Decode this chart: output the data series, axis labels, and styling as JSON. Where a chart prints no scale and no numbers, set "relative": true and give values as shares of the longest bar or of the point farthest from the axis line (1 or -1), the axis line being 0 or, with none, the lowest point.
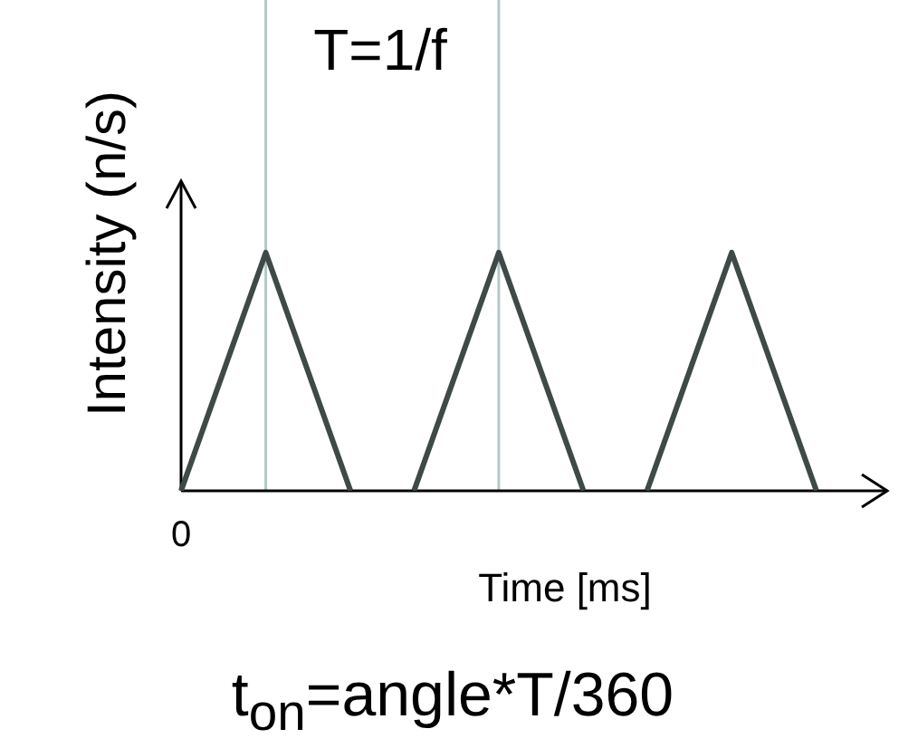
{
  "chart_data": {
    "type": "line",
    "relative": true,
    "xlabel": "Time [ms]",
    "ylabel": "Intensity (n/s)",
    "categories": [
      null,
      null,
      null,
      null,
      null,
      null,
      null,
      null,
      null,
      null,
      null,
      null,
      null,
      null,
      null,
      null,
      null,
      null,
      null,
      null,
      null,
      null,
      null,
      null,
      null,
      null,
      null,
      null,
      null,
      null,
      null,
      null,
      null,
      null
    ],
    "series": [
      {
        "color": "#3f4a48",
        "values": [
          0,
          0.25,
          0.5,
          0.75,
          1,
          0.75,
          0.5,
          0.25,
          0,
          null,
          null,
          null,
          null,
          null,
          null,
          null,
          null,
          null,
          null,
          null,
          null,
          null,
          null,
          null,
          null,
          null,
          null,
          null,
          null,
          null,
          null,
          null,
          null,
          null
        ]
      },
      {
        "color": "#3f4a48",
        "values": [
          null,
          null,
          null,
          null,
          null,
          null,
          null,
          null,
          null,
          null,
          null,
          0,
          0.25,
          0.5,
          0.75,
          1,
          0.75,
          0.5,
          0.25,
          0,
          null,
          null,
          null,
          null,
          null,
          null,
          null,
          null,
          null,
          null,
          null,
          null,
          null,
          null
        ]
      },
      {
        "color": "#3f4a48",
        "values": [
          null,
          null,
          null,
          null,
          null,
          null,
          null,
          null,
          null,
          null,
          null,
          null,
          null,
          null,
          null,
          null,
          null,
          null,
          null,
          null,
          null,
          null,
          0,
          0.25,
          0.5,
          0.75,
          1,
          0.75,
          0.5,
          0.25,
          0,
          null,
          null,
          null
        ]
      }
    ],
    "annotations": [
      "T=1/f",
      "0",
      "t$_{on}$=angle*T/360"
    ],
    "legend": false,
    "marker": "none",
    "line_style": "solid"
  }
}
